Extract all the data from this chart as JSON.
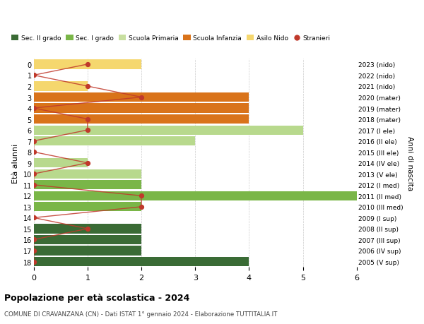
{
  "ages": [
    18,
    17,
    16,
    15,
    14,
    13,
    12,
    11,
    10,
    9,
    8,
    7,
    6,
    5,
    4,
    3,
    2,
    1,
    0
  ],
  "years": [
    "2005 (V sup)",
    "2006 (IV sup)",
    "2007 (III sup)",
    "2008 (II sup)",
    "2009 (I sup)",
    "2010 (III med)",
    "2011 (II med)",
    "2012 (I med)",
    "2013 (V ele)",
    "2014 (IV ele)",
    "2015 (III ele)",
    "2016 (II ele)",
    "2017 (I ele)",
    "2018 (mater)",
    "2019 (mater)",
    "2020 (mater)",
    "2021 (nido)",
    "2022 (nido)",
    "2023 (nido)"
  ],
  "bar_values": [
    4,
    2,
    2,
    2,
    0,
    2,
    6,
    2,
    2,
    1,
    0,
    3,
    5,
    4,
    4,
    4,
    1,
    0,
    2
  ],
  "bar_colors": [
    "#3a6b35",
    "#3a6b35",
    "#3a6b35",
    "#3a6b35",
    "#3a6b35",
    "#7ab648",
    "#7ab648",
    "#7ab648",
    "#b8d98d",
    "#b8d98d",
    "#b8d98d",
    "#b8d98d",
    "#b8d98d",
    "#d9731a",
    "#d9731a",
    "#d9731a",
    "#f5d76e",
    "#f5d76e",
    "#f5d76e"
  ],
  "stranieri_values": [
    0,
    0,
    0,
    1,
    0,
    2,
    2,
    0,
    0,
    1,
    0,
    0,
    1,
    1,
    0,
    2,
    1,
    0,
    1
  ],
  "xlim": [
    0,
    6
  ],
  "ylabel": "Età alunni",
  "ylabel2": "Anni di nascita",
  "title": "Popolazione per età scolastica - 2024",
  "subtitle": "COMUNE DI CRAVANZANA (CN) - Dati ISTAT 1° gennaio 2024 - Elaborazione TUTTITALIA.IT",
  "legend_labels": [
    "Sec. II grado",
    "Sec. I grado",
    "Scuola Primaria",
    "Scuola Infanzia",
    "Asilo Nido",
    "Stranieri"
  ],
  "legend_colors": [
    "#3a6b35",
    "#7ab648",
    "#c8dfa0",
    "#d9731a",
    "#f5d76e",
    "#c0392b"
  ],
  "bg_color": "#ffffff",
  "grid_color": "#cccccc",
  "stranieri_line_color": "#c0392b",
  "stranieri_dot_color": "#c0392b"
}
